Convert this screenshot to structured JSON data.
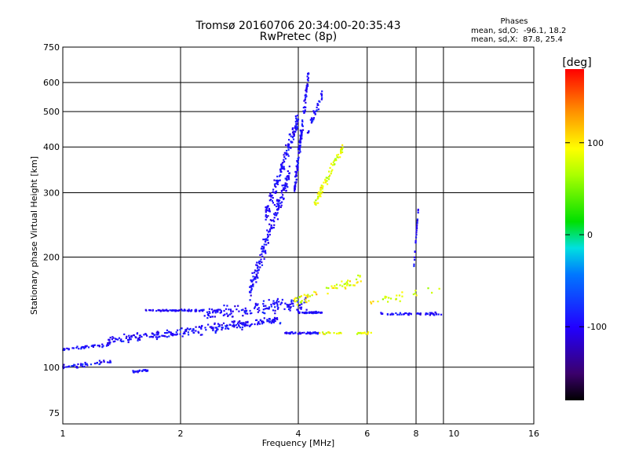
{
  "title_line1": "Tromsø 20160706 20:34:00-20:35:43",
  "title_line2": "RwPretec (8p)",
  "stats": {
    "header": "Phases",
    "line_o": "mean, sd,O:  -96.1, 18.2",
    "line_x": "mean, sd,X:  87.8, 25.4"
  },
  "colorbar": {
    "unit": "[deg]",
    "ticks": [
      {
        "value": 100,
        "label": "100"
      },
      {
        "value": 0,
        "label": "0"
      },
      {
        "value": -100,
        "label": "-100"
      }
    ],
    "range": [
      -180,
      180
    ]
  },
  "chart_data": {
    "type": "scatter",
    "xlabel": "Frequency [MHz]",
    "ylabel": "Stationary phase Virtual Height [km]",
    "x_scale": "log",
    "y_scale": "log",
    "xlim": [
      1,
      16
    ],
    "ylim": [
      70,
      750
    ],
    "x_ticks": [
      {
        "value": 1,
        "label": "1"
      },
      {
        "value": 2,
        "label": "2"
      },
      {
        "value": 4,
        "label": "4"
      },
      {
        "value": 6,
        "label": "6"
      },
      {
        "value": 8,
        "label": "8"
      },
      {
        "value": 10,
        "label": "10"
      },
      {
        "value": 16,
        "label": "16"
      }
    ],
    "y_ticks": [
      {
        "value": 75,
        "label": "75"
      },
      {
        "value": 100,
        "label": "100"
      },
      {
        "value": 200,
        "label": "200"
      },
      {
        "value": 300,
        "label": "300"
      },
      {
        "value": 400,
        "label": "400"
      },
      {
        "value": 500,
        "label": "500"
      },
      {
        "value": 600,
        "label": "600"
      },
      {
        "value": 750,
        "label": "750"
      }
    ],
    "grid_x": [
      1,
      2,
      4,
      6,
      8,
      9.4,
      16
    ],
    "grid_y": [
      100,
      200,
      300,
      400,
      500,
      600,
      750
    ],
    "color_encoding": "phase [deg]",
    "trace_groups": [
      {
        "mode": "O",
        "x0": 1.0,
        "x1": 1.3,
        "h0": 112,
        "h1": 115,
        "n": 40,
        "spread": 0.015
      },
      {
        "mode": "O",
        "x0": 1.0,
        "x1": 1.35,
        "h0": 100,
        "h1": 104,
        "n": 45,
        "spread": 0.02
      },
      {
        "mode": "O",
        "x0": 1.3,
        "x1": 3.6,
        "h0": 118,
        "h1": 135,
        "n": 260,
        "spread": 0.04
      },
      {
        "mode": "O",
        "x0": 1.5,
        "x1": 1.65,
        "h0": 97,
        "h1": 98,
        "n": 25,
        "spread": 0.01
      },
      {
        "mode": "O",
        "x0": 1.6,
        "x1": 2.3,
        "h0": 143,
        "h1": 143,
        "n": 70,
        "spread": 0.008
      },
      {
        "mode": "O",
        "x0": 2.3,
        "x1": 4.2,
        "h0": 140,
        "h1": 150,
        "n": 150,
        "spread": 0.06
      },
      {
        "mode": "O",
        "x0": 3.0,
        "x1": 3.8,
        "h0": 160,
        "h1": 340,
        "n": 180,
        "spread": 0.1
      },
      {
        "mode": "O",
        "x0": 3.3,
        "x1": 4.0,
        "h0": 260,
        "h1": 480,
        "n": 140,
        "spread": 0.08
      },
      {
        "mode": "O",
        "x0": 3.9,
        "x1": 4.25,
        "h0": 300,
        "h1": 640,
        "n": 130,
        "spread": 0.08
      },
      {
        "mode": "O",
        "x0": 4.0,
        "x1": 4.6,
        "h0": 141,
        "h1": 141,
        "n": 60,
        "spread": 0.008
      },
      {
        "mode": "O",
        "x0": 3.7,
        "x1": 4.5,
        "h0": 124,
        "h1": 124,
        "n": 45,
        "spread": 0.008
      },
      {
        "mode": "O",
        "x0": 4.2,
        "x1": 4.6,
        "h0": 430,
        "h1": 560,
        "n": 35,
        "spread": 0.05
      },
      {
        "mode": "X",
        "x0": 4.4,
        "x1": 5.2,
        "h0": 280,
        "h1": 400,
        "n": 70,
        "spread": 0.05
      },
      {
        "mode": "X",
        "x0": 3.9,
        "x1": 5.8,
        "h0": 150,
        "h1": 175,
        "n": 60,
        "spread": 0.05
      },
      {
        "mode": "X",
        "x0": 4.5,
        "x1": 6.2,
        "h0": 124,
        "h1": 124,
        "n": 30,
        "spread": 0.01
      },
      {
        "mode": "O",
        "x0": 6.5,
        "x1": 9.3,
        "h0": 140,
        "h1": 140,
        "n": 55,
        "spread": 0.012
      },
      {
        "mode": "O",
        "x0": 7.9,
        "x1": 8.1,
        "h0": 190,
        "h1": 270,
        "n": 25,
        "spread": 0.02
      },
      {
        "mode": "X",
        "x0": 6.0,
        "x1": 9.2,
        "h0": 150,
        "h1": 165,
        "n": 25,
        "spread": 0.04
      }
    ]
  }
}
